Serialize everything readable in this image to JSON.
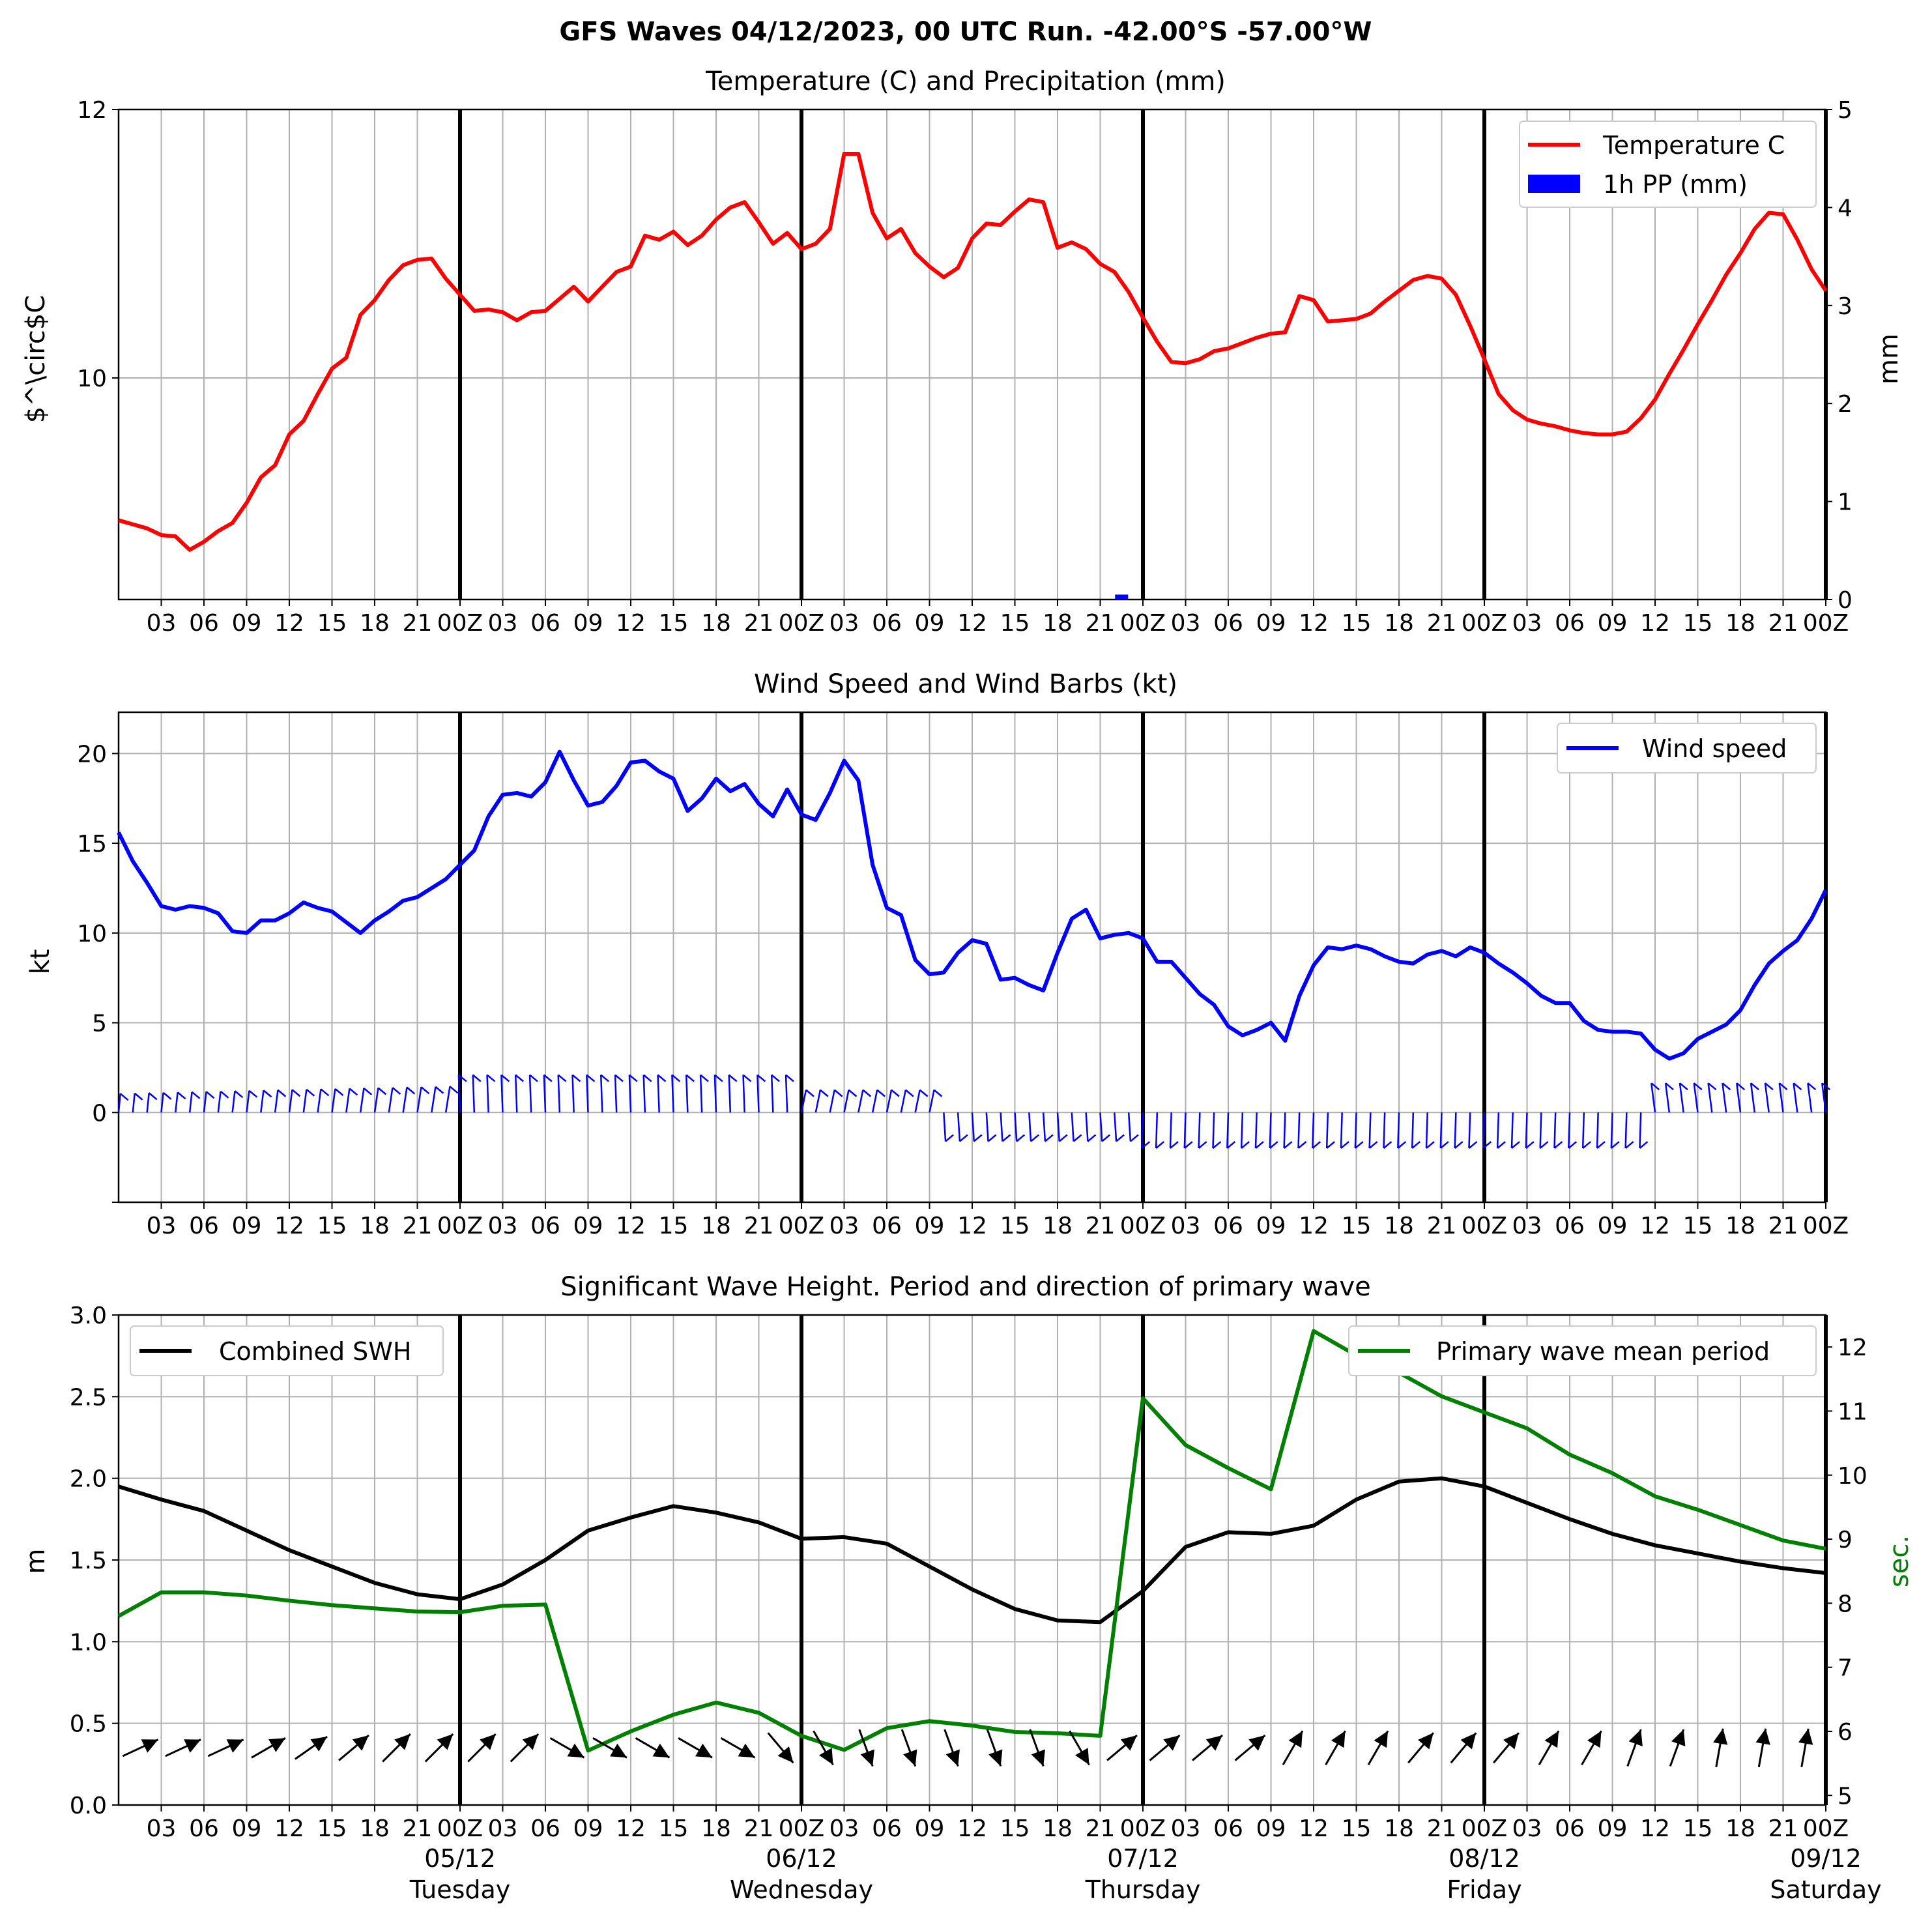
{
  "suptitle": "GFS Waves 04/12/2023, 00 UTC Run. -42.00°S -57.00°W",
  "hour_tick_labels": [
    "03",
    "06",
    "09",
    "12",
    "15",
    "18",
    "21",
    "00Z",
    "03",
    "06",
    "09",
    "12",
    "15",
    "18",
    "21",
    "00Z",
    "03",
    "06",
    "09",
    "12",
    "15",
    "18",
    "21",
    "00Z",
    "03",
    "06",
    "09",
    "12",
    "15",
    "18",
    "21",
    "00Z",
    "03",
    "06",
    "09",
    "12",
    "15",
    "18",
    "21",
    "00Z"
  ],
  "date_labels": [
    {
      "date": "05/12",
      "day": "Tuesday"
    },
    {
      "date": "06/12",
      "day": "Wednesday"
    },
    {
      "date": "07/12",
      "day": "Thursday"
    },
    {
      "date": "08/12",
      "day": "Friday"
    },
    {
      "date": "09/12",
      "day": "Saturday"
    }
  ],
  "colors": {
    "temperature": "#ff0000",
    "precip": "#0000ff",
    "wind": "#0000ff",
    "swh": "#000000",
    "period": "#008000",
    "grid": "#b0b0b0"
  },
  "chart_data": [
    {
      "type": "line",
      "title": "Temperature (C) and Precipitation (mm)",
      "ylabel": "$^\\circ$C",
      "ylabel_right": "mm",
      "x_unit": "hours since 04/12/2023 00 UTC",
      "xlim": [
        0,
        120
      ],
      "ylim": [
        8.35,
        12
      ],
      "yticks": [
        10,
        12
      ],
      "ylim_right": [
        0,
        5
      ],
      "yticks_right": [
        0,
        1,
        2,
        3,
        4,
        5
      ],
      "legend_position": "top-right",
      "series": [
        {
          "name": "Temperature C",
          "type": "line",
          "x": [
            0,
            1,
            2,
            3,
            4,
            5,
            6,
            7,
            8,
            9,
            10,
            11,
            12,
            13,
            14,
            15,
            16,
            17,
            18,
            19,
            20,
            21,
            22,
            23,
            24,
            25,
            26,
            27,
            28,
            29,
            30,
            31,
            32,
            33,
            34,
            35,
            36,
            37,
            38,
            39,
            40,
            41,
            42,
            43,
            44,
            45,
            46,
            47,
            48,
            49,
            50,
            51,
            52,
            53,
            54,
            55,
            56,
            57,
            58,
            59,
            60,
            61,
            62,
            63,
            64,
            65,
            66,
            67,
            68,
            69,
            70,
            71,
            72,
            73,
            74,
            75,
            76,
            77,
            78,
            79,
            80,
            81,
            82,
            83,
            84,
            85,
            86,
            87,
            88,
            89,
            90,
            91,
            92,
            93,
            94,
            95,
            96,
            97,
            98,
            99,
            100,
            101,
            102,
            103,
            104,
            105,
            106,
            107,
            108,
            109,
            110,
            111,
            112,
            113,
            114,
            115,
            116,
            117,
            118,
            119,
            120
          ],
          "y": [
            8.94,
            8.91,
            8.88,
            8.83,
            8.82,
            8.72,
            8.78,
            8.86,
            8.92,
            9.07,
            9.26,
            9.35,
            9.58,
            9.68,
            9.88,
            10.07,
            10.15,
            10.47,
            10.58,
            10.73,
            10.84,
            10.88,
            10.89,
            10.74,
            10.62,
            10.5,
            10.51,
            10.49,
            10.43,
            10.49,
            10.5,
            10.59,
            10.68,
            10.57,
            10.68,
            10.79,
            10.83,
            11.06,
            11.03,
            11.09,
            10.99,
            11.06,
            11.18,
            11.27,
            11.31,
            11.16,
            11.0,
            11.08,
            10.96,
            11.0,
            11.11,
            11.67,
            11.67,
            11.23,
            11.04,
            11.11,
            10.93,
            10.83,
            10.75,
            10.82,
            11.04,
            11.15,
            11.14,
            11.24,
            11.33,
            11.31,
            10.97,
            11.01,
            10.96,
            10.85,
            10.79,
            10.64,
            10.45,
            10.27,
            10.12,
            10.11,
            10.14,
            10.2,
            10.22,
            10.26,
            10.3,
            10.33,
            10.34,
            10.61,
            10.58,
            10.42,
            10.43,
            10.44,
            10.48,
            10.57,
            10.65,
            10.73,
            10.76,
            10.74,
            10.62,
            10.39,
            10.14,
            9.88,
            9.76,
            9.69,
            9.66,
            9.64,
            9.61,
            9.59,
            9.58,
            9.58,
            9.6,
            9.7,
            9.84,
            10.03,
            10.21,
            10.4,
            10.58,
            10.77,
            10.93,
            11.11,
            11.23,
            11.22,
            11.03,
            10.81,
            10.65
          ]
        },
        {
          "name": "1h PP (mm)",
          "type": "bar",
          "x": [
            70.5
          ],
          "y": [
            0.05
          ]
        }
      ]
    },
    {
      "type": "line",
      "title": "Wind Speed and Wind Barbs (kt)",
      "ylabel": "kt",
      "x_unit": "hours since 04/12/2023 00 UTC",
      "xlim": [
        0,
        120
      ],
      "ylim": [
        -5,
        22.3
      ],
      "yticks": [
        0,
        5,
        10,
        15,
        20
      ],
      "legend_position": "top-right",
      "series": [
        {
          "name": "Wind speed",
          "x": [
            0,
            1,
            2,
            3,
            4,
            5,
            6,
            7,
            8,
            9,
            10,
            11,
            12,
            13,
            14,
            15,
            16,
            17,
            18,
            19,
            20,
            21,
            22,
            23,
            24,
            25,
            26,
            27,
            28,
            29,
            30,
            31,
            32,
            33,
            34,
            35,
            36,
            37,
            38,
            39,
            40,
            41,
            42,
            43,
            44,
            45,
            46,
            47,
            48,
            49,
            50,
            51,
            52,
            53,
            54,
            55,
            56,
            57,
            58,
            59,
            60,
            61,
            62,
            63,
            64,
            65,
            66,
            67,
            68,
            69,
            70,
            71,
            72,
            73,
            74,
            75,
            76,
            77,
            78,
            79,
            80,
            81,
            82,
            83,
            84,
            85,
            86,
            87,
            88,
            89,
            90,
            91,
            92,
            93,
            94,
            95,
            96,
            97,
            98,
            99,
            100,
            101,
            102,
            103,
            104,
            105,
            106,
            107,
            108,
            109,
            110,
            111,
            112,
            113,
            114,
            115,
            116,
            117,
            118,
            119,
            120
          ],
          "y": [
            15.6,
            14.0,
            12.8,
            11.5,
            11.3,
            11.5,
            11.4,
            11.1,
            10.1,
            10.0,
            10.7,
            10.7,
            11.1,
            11.7,
            11.4,
            11.2,
            10.6,
            10.0,
            10.7,
            11.2,
            11.8,
            12.0,
            12.5,
            13.0,
            13.8,
            14.6,
            16.5,
            17.7,
            17.8,
            17.6,
            18.4,
            20.1,
            18.5,
            17.1,
            17.3,
            18.2,
            19.5,
            19.6,
            19.0,
            18.6,
            16.8,
            17.5,
            18.6,
            17.9,
            18.3,
            17.2,
            16.5,
            18.0,
            16.6,
            16.3,
            17.8,
            19.6,
            18.5,
            13.8,
            11.4,
            11.0,
            8.5,
            7.7,
            7.8,
            8.9,
            9.6,
            9.4,
            7.4,
            7.5,
            7.1,
            6.8,
            8.9,
            10.8,
            11.3,
            9.7,
            9.9,
            10.0,
            9.7,
            8.4,
            8.4,
            7.5,
            6.6,
            6.0,
            4.8,
            4.3,
            4.6,
            5.0,
            4.0,
            6.5,
            8.2,
            9.2,
            9.1,
            9.3,
            9.1,
            8.7,
            8.4,
            8.3,
            8.8,
            9.0,
            8.7,
            9.2,
            8.9,
            8.3,
            7.8,
            7.2,
            6.5,
            6.1,
            6.1,
            5.1,
            4.6,
            4.5,
            4.5,
            4.4,
            3.5,
            3.0,
            3.3,
            4.1,
            4.5,
            4.9,
            5.7,
            7.1,
            8.3,
            9.0,
            9.6,
            10.8,
            12.4
          ]
        }
      ]
    },
    {
      "type": "line",
      "title": "Significant Wave Height. Period and direction of primary wave",
      "ylabel": "m",
      "ylabel_right": "sec.",
      "x_unit": "hours since 04/12/2023 00 UTC",
      "xlim": [
        0,
        120
      ],
      "ylim": [
        0,
        3
      ],
      "yticks": [
        0,
        0.5,
        1,
        1.5,
        2,
        2.5,
        3
      ],
      "ylim_right": [
        4.85,
        12.5
      ],
      "yticks_right": [
        5,
        6,
        7,
        8,
        9,
        10,
        11,
        12
      ],
      "legend_position": "top-left / top-right",
      "series": [
        {
          "name": "Combined SWH",
          "x": [
            0,
            3,
            6,
            9,
            12,
            15,
            18,
            21,
            24,
            27,
            30,
            33,
            36,
            39,
            42,
            45,
            48,
            51,
            54,
            57,
            60,
            63,
            66,
            69,
            72,
            75,
            78,
            81,
            84,
            87,
            90,
            93,
            96,
            99,
            102,
            105,
            108,
            111,
            114,
            117,
            120
          ],
          "y": [
            1.95,
            1.87,
            1.8,
            1.68,
            1.56,
            1.46,
            1.36,
            1.29,
            1.26,
            1.35,
            1.5,
            1.68,
            1.76,
            1.83,
            1.79,
            1.73,
            1.63,
            1.64,
            1.6,
            1.46,
            1.32,
            1.2,
            1.13,
            1.12,
            1.31,
            1.58,
            1.67,
            1.66,
            1.71,
            1.87,
            1.98,
            2.0,
            1.95,
            1.85,
            1.75,
            1.66,
            1.59,
            1.54,
            1.49,
            1.45,
            1.42
          ]
        },
        {
          "name": "Primary wave mean period",
          "x": [
            0,
            3,
            6,
            9,
            12,
            15,
            18,
            21,
            24,
            27,
            30,
            33,
            36,
            39,
            42,
            45,
            48,
            51,
            54,
            57,
            60,
            63,
            66,
            69,
            72,
            75,
            78,
            81,
            84,
            87,
            90,
            93,
            96,
            99,
            102,
            105,
            108,
            111,
            114,
            117,
            120
          ],
          "y": [
            7.8,
            8.17,
            8.17,
            8.12,
            8.04,
            7.97,
            7.92,
            7.87,
            7.86,
            7.96,
            7.98,
            5.7,
            6.0,
            6.26,
            6.45,
            6.29,
            5.93,
            5.71,
            6.05,
            6.16,
            6.09,
            5.99,
            5.97,
            5.93,
            11.2,
            10.47,
            10.11,
            9.78,
            12.25,
            11.87,
            11.6,
            11.23,
            10.98,
            10.73,
            10.32,
            10.03,
            9.67,
            9.46,
            9.22,
            8.98,
            8.85
          ]
        }
      ],
      "wave_direction_deg_from": [
        240,
        245,
        245,
        245,
        240,
        235,
        230,
        225,
        225,
        225,
        225,
        300,
        300,
        300,
        300,
        300,
        320,
        330,
        340,
        340,
        340,
        340,
        340,
        330,
        230,
        230,
        230,
        230,
        210,
        210,
        210,
        220,
        220,
        220,
        210,
        210,
        200,
        200,
        190,
        190,
        190
      ]
    }
  ]
}
